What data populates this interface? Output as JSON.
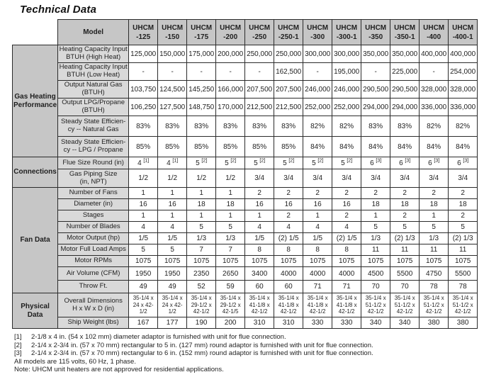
{
  "title": "Technical Data",
  "table": {
    "corner_label": "Model",
    "models": [
      "UHCM-125",
      "UHCM-150",
      "UHCM-175",
      "UHCM-200",
      "UHCM-250",
      "UHCM-250-1",
      "UHCM-300",
      "UHCM-300-1",
      "UHCM-350",
      "UHCM-350-1",
      "UHCM-400",
      "UHCM-400-1"
    ],
    "groups": [
      {
        "label": "Gas Heating\nPerformance",
        "rows": [
          {
            "label": "Heating Capacity Input\nBTUH (High Heat)",
            "values": [
              "125,000",
              "150,000",
              "175,000",
              "200,000",
              "250,000",
              "250,000",
              "300,000",
              "300,000",
              "350,000",
              "350,000",
              "400,000",
              "400,000"
            ]
          },
          {
            "label": "Heating Capacity Input\nBTUH (Low Heat)",
            "values": [
              "-",
              "-",
              "-",
              "-",
              "-",
              "162,500",
              "-",
              "195,000",
              "-",
              "225,000",
              "-",
              "254,000"
            ]
          },
          {
            "label": "Output Natural Gas\n(BTUH)",
            "values": [
              "103,750",
              "124,500",
              "145,250",
              "166,000",
              "207,500",
              "207,500",
              "246,000",
              "246,000",
              "290,500",
              "290,500",
              "328,000",
              "328,000"
            ]
          },
          {
            "label": "Output LPG/Propane\n(BTUH)",
            "values": [
              "106,250",
              "127,500",
              "148,750",
              "170,000",
              "212,500",
              "212,500",
              "252,000",
              "252,000",
              "294,000",
              "294,000",
              "336,000",
              "336,000"
            ]
          },
          {
            "label": "Steady State Efficien-\ncy -- Natural Gas",
            "values": [
              "83%",
              "83%",
              "83%",
              "83%",
              "83%",
              "83%",
              "82%",
              "82%",
              "83%",
              "83%",
              "82%",
              "82%"
            ]
          },
          {
            "label": "Steady State Efficien-\ncy -- LPG / Propane",
            "values": [
              "85%",
              "85%",
              "85%",
              "85%",
              "85%",
              "85%",
              "84%",
              "84%",
              "84%",
              "84%",
              "84%",
              "84%"
            ]
          }
        ]
      },
      {
        "label": "Connections",
        "rows": [
          {
            "label": "Flue Size Round (in)",
            "values": [
              "4 [1]",
              "4 [1]",
              "5 [2]",
              "5 [2]",
              "5 [2]",
              "5 [2]",
              "5 [2]",
              "5 [2]",
              "6 [3]",
              "6 [3]",
              "6 [3]",
              "6 [3]"
            ]
          },
          {
            "label": "Gas Piping Size\n(in, NPT)",
            "values": [
              "1/2",
              "1/2",
              "1/2",
              "1/2",
              "3/4",
              "3/4",
              "3/4",
              "3/4",
              "3/4",
              "3/4",
              "3/4",
              "3/4"
            ]
          }
        ]
      },
      {
        "label": "Fan Data",
        "rows": [
          {
            "label": "Number of Fans",
            "values": [
              "1",
              "1",
              "1",
              "1",
              "2",
              "2",
              "2",
              "2",
              "2",
              "2",
              "2",
              "2"
            ]
          },
          {
            "label": "Diameter (in)",
            "values": [
              "16",
              "16",
              "18",
              "18",
              "16",
              "16",
              "16",
              "16",
              "18",
              "18",
              "18",
              "18"
            ]
          },
          {
            "label": "Stages",
            "values": [
              "1",
              "1",
              "1",
              "1",
              "1",
              "2",
              "1",
              "2",
              "1",
              "2",
              "1",
              "2"
            ]
          },
          {
            "label": "Number of Blades",
            "values": [
              "4",
              "4",
              "5",
              "5",
              "4",
              "4",
              "4",
              "4",
              "5",
              "5",
              "5",
              "5"
            ]
          },
          {
            "label": "Motor Output (hp)",
            "values": [
              "1/5",
              "1/5",
              "1/3",
              "1/3",
              "1/5",
              "(2) 1/5",
              "1/5",
              "(2) 1/5",
              "1/3",
              "(2) 1/3",
              "1/3",
              "(2) 1/3"
            ]
          },
          {
            "label": "Motor Full Load Amps",
            "values": [
              "5",
              "5",
              "7",
              "7",
              "8",
              "8",
              "8",
              "8",
              "11",
              "11",
              "11",
              "11"
            ]
          },
          {
            "label": "Motor RPMs",
            "values": [
              "1075",
              "1075",
              "1075",
              "1075",
              "1075",
              "1075",
              "1075",
              "1075",
              "1075",
              "1075",
              "1075",
              "1075"
            ]
          },
          {
            "label": "Air Volume (CFM)",
            "values": [
              "1950",
              "1950",
              "2350",
              "2650",
              "3400",
              "4000",
              "4000",
              "4000",
              "4500",
              "5500",
              "4750",
              "5500"
            ]
          },
          {
            "label": "Throw Ft.",
            "values": [
              "49",
              "49",
              "52",
              "59",
              "60",
              "60",
              "71",
              "71",
              "70",
              "70",
              "78",
              "78"
            ]
          }
        ]
      },
      {
        "label": "Physical\nData",
        "rows": [
          {
            "label": "Overall Dimensions\nH x W x D (in)",
            "values": [
              "35-1/4 x 24 x 42-1/2",
              "35-1/4 x 24 x 42-1/2",
              "35-1/4 x 29-1/2 x 42-1/2",
              "35-1/4 x 29-1/2 x 42-1/5",
              "35-1/4 x 41-1/8 x 42-1/2",
              "35-1/4 x 41-1/8 x 42-1/2",
              "35-1/4 x 41-1/8 x 42-1/2",
              "35-1/4 x 41-1/8 x 42-1/2",
              "35-1/4 x 51-1/2 x 42-1/2",
              "35-1/4 x 51-1/2 x 42-1/2",
              "35-1/4 x 51-1/2 x 42-1/2",
              "35-1/4 x 51-1/2 x 42-1/2"
            ]
          },
          {
            "label": "Ship Weight (lbs)",
            "values": [
              "167",
              "177",
              "190",
              "200",
              "310",
              "310",
              "330",
              "330",
              "340",
              "340",
              "380",
              "380"
            ]
          }
        ]
      }
    ]
  },
  "footnotes": {
    "items": [
      {
        "marker": "[1]",
        "text": "2-1/8 x 4 in. (54 x 102 mm) diameter adaptor is furnished with unit for flue connection."
      },
      {
        "marker": "[2]",
        "text": "2-1/4 x 2-3/4 in. (57 x 70 mm) rectangular to 5 in. (127 mm) round adaptor is furnished with unit for flue connection."
      },
      {
        "marker": "[3]",
        "text": "2-1/4 x 2-3/4 in. (57 x 70 mm) rectangular to 6 in. (152 mm) round adaptor is furnished with unit for flue connection."
      }
    ],
    "lines": [
      "All models are 115 volts, 60 Hz, 1 phase.",
      "Note:  UHCM unit heaters are not approved for residential applications."
    ]
  },
  "colors": {
    "header_bg": "#c6c6c6",
    "row_label_bg": "#d9d9d9",
    "border": "#2b2b2b",
    "text": "#1f1f1f"
  }
}
